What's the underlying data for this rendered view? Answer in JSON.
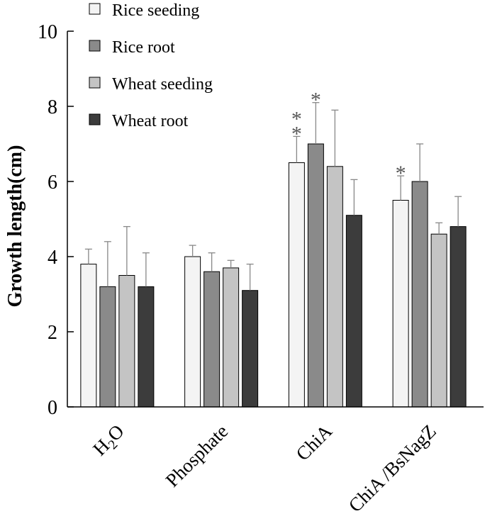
{
  "chart_data": {
    "type": "bar",
    "title": "",
    "xlabel": "",
    "ylabel": "Growth length(cm)",
    "ylim": [
      0,
      10
    ],
    "yticks": [
      0,
      2,
      4,
      6,
      8,
      10
    ],
    "categories": [
      {
        "parts": [
          {
            "t": "H",
            "sub": false
          },
          {
            "t": "2",
            "sub": true
          },
          {
            "t": "O",
            "sub": false
          }
        ]
      },
      {
        "parts": [
          {
            "t": "Phosphate",
            "sub": false
          }
        ]
      },
      {
        "parts": [
          {
            "t": "ChiA",
            "sub": false
          }
        ]
      },
      {
        "parts": [
          {
            "t": "ChiA /BsNagZ",
            "sub": false
          }
        ]
      }
    ],
    "legend_position": "top-left",
    "series": [
      {
        "name": "Rice seeding",
        "color": "#f4f4f4",
        "values": [
          3.8,
          4.0,
          6.5,
          5.5
        ],
        "errors": [
          0.4,
          0.3,
          0.7,
          0.65
        ],
        "significance": [
          "",
          "",
          "**",
          "*"
        ]
      },
      {
        "name": "Rice root",
        "color": "#8a8a8a",
        "values": [
          3.2,
          3.6,
          7.0,
          6.0
        ],
        "errors": [
          1.2,
          0.5,
          1.1,
          1.0
        ],
        "significance": [
          "",
          "",
          "*",
          ""
        ]
      },
      {
        "name": "Wheat seeding",
        "color": "#c4c4c4",
        "values": [
          3.5,
          3.7,
          6.4,
          4.6
        ],
        "errors": [
          1.3,
          0.2,
          1.5,
          0.3
        ],
        "significance": [
          "",
          "",
          "",
          ""
        ]
      },
      {
        "name": "Wheat root",
        "color": "#3c3c3c",
        "values": [
          3.2,
          3.1,
          5.1,
          4.8
        ],
        "errors": [
          0.9,
          0.7,
          0.95,
          0.8
        ],
        "significance": [
          "",
          "",
          "",
          ""
        ]
      }
    ]
  }
}
